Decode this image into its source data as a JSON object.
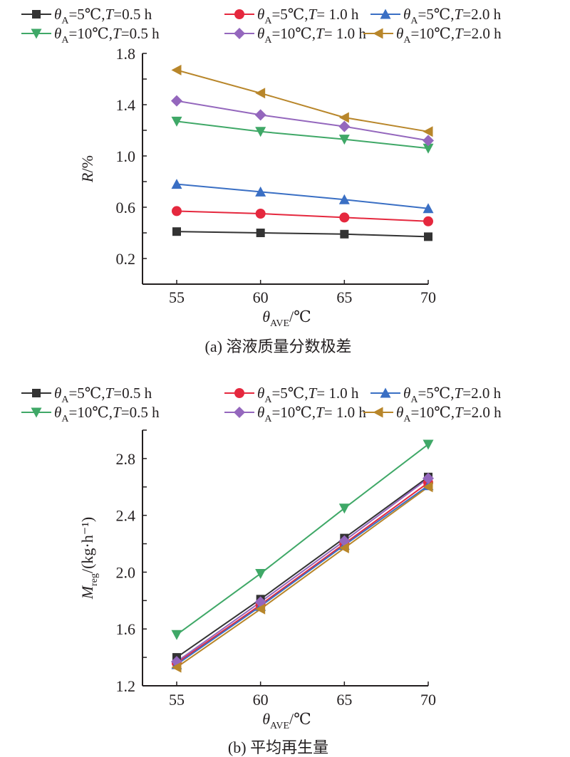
{
  "chart_data": [
    {
      "id": "a",
      "type": "line",
      "caption": "(a) 溶液质量分数极差",
      "title": "",
      "xlabel": {
        "main": "θ",
        "sub": "AVE",
        "suffix": "/℃"
      },
      "ylabel": {
        "main": "R",
        "sub": "",
        "suffix": "/%"
      },
      "x": [
        55,
        60,
        65,
        70
      ],
      "xticks": [
        "55",
        "60",
        "65",
        "70"
      ],
      "xlim": [
        52,
        70
      ],
      "yticks": [
        "0.2",
        "0.6",
        "1.0",
        "1.4",
        "1.8"
      ],
      "ytick_values": [
        0.2,
        0.6,
        1.0,
        1.4,
        1.8
      ],
      "yminor": [
        0.4,
        0.8,
        1.2,
        1.6
      ],
      "ylim": [
        0.0,
        1.8
      ],
      "grid": false,
      "legend_position": "top",
      "series": [
        {
          "name": "θA=5℃,T=0.5 h",
          "theta": "5℃",
          "T": "0.5 h",
          "marker": "square",
          "color": "#333333",
          "values": [
            0.41,
            0.4,
            0.39,
            0.37
          ]
        },
        {
          "name": "θA=5℃,T= 1.0 h",
          "theta": "5℃",
          "T": " 1.0 h",
          "marker": "circle",
          "color": "#e5283e",
          "values": [
            0.57,
            0.55,
            0.52,
            0.49
          ]
        },
        {
          "name": "θA=5℃,T=2.0 h",
          "theta": "5℃",
          "T": "2.0 h",
          "marker": "triangle-up",
          "color": "#3a6fc4",
          "values": [
            0.78,
            0.72,
            0.66,
            0.59
          ]
        },
        {
          "name": "θA=10℃,T=0.5 h",
          "theta": "10℃",
          "T": "0.5 h",
          "marker": "triangle-down",
          "color": "#3fa867",
          "values": [
            1.27,
            1.19,
            1.13,
            1.06
          ]
        },
        {
          "name": "θA=10℃,T= 1.0 h",
          "theta": "10℃",
          "T": " 1.0 h",
          "marker": "diamond",
          "color": "#9467bd",
          "values": [
            1.43,
            1.32,
            1.23,
            1.12
          ]
        },
        {
          "name": "θA=10℃,T=2.0 h",
          "theta": "10℃",
          "T": "2.0 h",
          "marker": "triangle-left",
          "color": "#b8862a",
          "values": [
            1.67,
            1.49,
            1.3,
            1.19
          ]
        }
      ]
    },
    {
      "id": "b",
      "type": "line",
      "caption": "(b) 平均再生量",
      "title": "",
      "xlabel": {
        "main": "θ",
        "sub": "AVE",
        "suffix": "/℃"
      },
      "ylabel": {
        "main": "M",
        "sub": "reg",
        "suffix": "/(kg·h⁻¹)"
      },
      "x": [
        55,
        60,
        65,
        70
      ],
      "xticks": [
        "55",
        "60",
        "65",
        "70"
      ],
      "xlim": [
        52,
        70
      ],
      "yticks": [
        "1.2",
        "1.6",
        "2.0",
        "2.4",
        "2.8"
      ],
      "ytick_values": [
        1.2,
        1.6,
        2.0,
        2.4,
        2.8
      ],
      "yminor": [
        1.4,
        1.8,
        2.2,
        2.6,
        3.0
      ],
      "ylim": [
        1.2,
        3.0
      ],
      "grid": false,
      "legend_position": "top",
      "series": [
        {
          "name": "θA=5℃,T=0.5 h",
          "theta": "5℃",
          "T": "0.5 h",
          "marker": "square",
          "color": "#333333",
          "values": [
            1.4,
            1.81,
            2.24,
            2.67
          ]
        },
        {
          "name": "θA=5℃,T= 1.0 h",
          "theta": "5℃",
          "T": " 1.0 h",
          "marker": "circle",
          "color": "#e5283e",
          "values": [
            1.36,
            1.77,
            2.2,
            2.63
          ]
        },
        {
          "name": "θA=5℃,T=2.0 h",
          "theta": "5℃",
          "T": "2.0 h",
          "marker": "triangle-up",
          "color": "#3a6fc4",
          "values": [
            1.35,
            1.76,
            2.19,
            2.61
          ]
        },
        {
          "name": "θA=10℃,T=0.5 h",
          "theta": "10℃",
          "T": "0.5 h",
          "marker": "triangle-down",
          "color": "#3fa867",
          "values": [
            1.56,
            1.99,
            2.45,
            2.9
          ]
        },
        {
          "name": "θA=10℃,T= 1.0 h",
          "theta": "10℃",
          "T": " 1.0 h",
          "marker": "diamond",
          "color": "#9467bd",
          "values": [
            1.37,
            1.79,
            2.22,
            2.66
          ]
        },
        {
          "name": "θA=10℃,T=2.0 h",
          "theta": "10℃",
          "T": "2.0 h",
          "marker": "triangle-left",
          "color": "#b8862a",
          "values": [
            1.33,
            1.74,
            2.17,
            2.6
          ]
        }
      ]
    }
  ]
}
